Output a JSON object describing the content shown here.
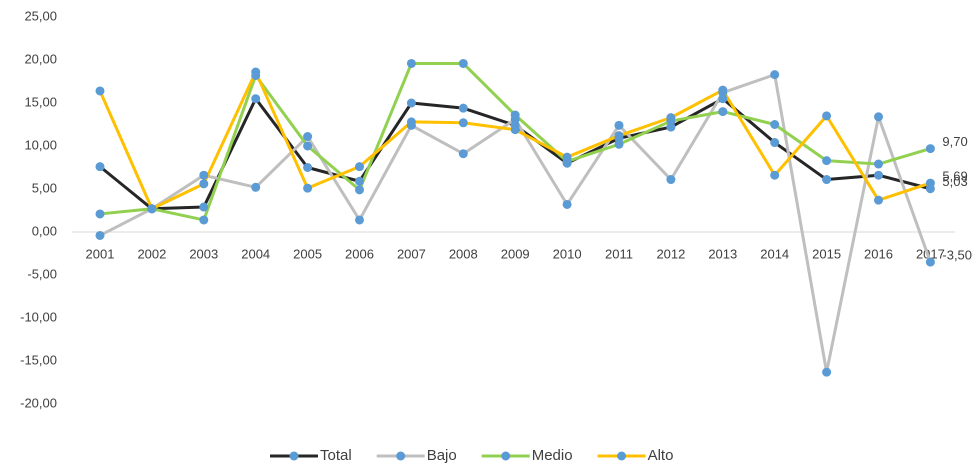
{
  "chart_data": {
    "type": "line",
    "categories": [
      "2001",
      "2002",
      "2003",
      "2004",
      "2005",
      "2006",
      "2007",
      "2008",
      "2009",
      "2010",
      "2011",
      "2012",
      "2013",
      "2014",
      "2015",
      "2016",
      "2017"
    ],
    "series": [
      {
        "name": "Total",
        "color": "#262626",
        "values": [
          7.6,
          2.7,
          2.9,
          15.5,
          7.5,
          5.9,
          15.0,
          14.4,
          12.4,
          8.0,
          10.9,
          12.2,
          15.5,
          10.4,
          6.1,
          6.6,
          5.03
        ],
        "value_labels": [
          null,
          null,
          null,
          null,
          null,
          null,
          null,
          null,
          null,
          null,
          null,
          null,
          null,
          null,
          null,
          null,
          "5,03"
        ]
      },
      {
        "name": "Bajo",
        "color": "#bfbfbf",
        "values": [
          -0.4,
          2.7,
          6.6,
          5.2,
          11.1,
          1.4,
          12.4,
          9.1,
          13.1,
          3.2,
          12.4,
          6.1,
          16.2,
          18.3,
          -16.3,
          13.4,
          -3.5
        ],
        "value_labels": [
          null,
          null,
          null,
          null,
          null,
          null,
          null,
          null,
          null,
          null,
          null,
          null,
          null,
          null,
          null,
          null,
          "-3,50"
        ]
      },
      {
        "name": "Medio",
        "color": "#92d050",
        "values": [
          2.1,
          2.7,
          1.4,
          18.2,
          10.0,
          4.9,
          19.6,
          19.6,
          13.6,
          8.2,
          10.2,
          12.9,
          14.0,
          12.5,
          8.3,
          7.9,
          9.7
        ],
        "value_labels": [
          null,
          null,
          null,
          null,
          null,
          null,
          null,
          null,
          null,
          null,
          null,
          null,
          null,
          null,
          null,
          null,
          "9,70"
        ]
      },
      {
        "name": "Alto",
        "color": "#ffc000",
        "values": [
          16.4,
          2.7,
          5.6,
          18.6,
          5.1,
          7.6,
          12.8,
          12.7,
          11.9,
          8.7,
          11.2,
          13.3,
          16.5,
          6.6,
          13.5,
          3.7,
          5.69
        ],
        "value_labels": [
          null,
          null,
          null,
          null,
          null,
          null,
          null,
          null,
          null,
          null,
          null,
          null,
          null,
          null,
          null,
          null,
          "5,69"
        ]
      }
    ],
    "marker_color": "#5b9bd5",
    "ylim": [
      -20,
      25
    ],
    "yticks": [
      {
        "value": -20,
        "label": "-20,00"
      },
      {
        "value": -15,
        "label": "-15,00"
      },
      {
        "value": -10,
        "label": "-10,00"
      },
      {
        "value": -5,
        "label": "-5,00"
      },
      {
        "value": 0,
        "label": "0,00"
      },
      {
        "value": 5,
        "label": "5,00"
      },
      {
        "value": 10,
        "label": "10,00"
      },
      {
        "value": 15,
        "label": "15,00"
      },
      {
        "value": 20,
        "label": "20,00"
      },
      {
        "value": 25,
        "label": "25,00"
      }
    ],
    "grid": false,
    "legend": "bottom"
  }
}
